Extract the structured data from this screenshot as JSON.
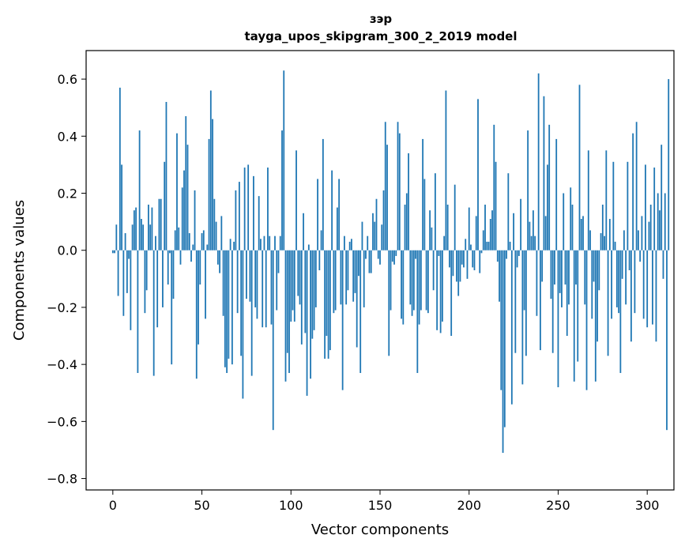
{
  "chart_data": {
    "type": "bar",
    "title": "зэр",
    "subtitle": "tayga_upos_skipgram_300_2_2019 model",
    "xlabel": "Vector components",
    "ylabel": "Components values",
    "xlim": [
      -15,
      315
    ],
    "ylim": [
      -0.84,
      0.7
    ],
    "xticks": [
      0,
      50,
      100,
      150,
      200,
      250,
      300
    ],
    "yticks": [
      -0.8,
      -0.6,
      -0.4,
      -0.2,
      0.0,
      0.2,
      0.4,
      0.6
    ],
    "ytick_labels": [
      "−0.8",
      "−0.6",
      "−0.4",
      "−0.2",
      "0.0",
      "0.2",
      "0.4",
      "0.6"
    ],
    "grid": false,
    "bar_color": "#1f77b4",
    "values": [
      -0.01,
      -0.01,
      0.09,
      -0.16,
      0.57,
      0.3,
      -0.23,
      0.06,
      -0.15,
      -0.03,
      -0.28,
      0.09,
      0.14,
      0.15,
      -0.43,
      0.42,
      0.11,
      0.09,
      -0.22,
      -0.14,
      0.16,
      0.09,
      0.15,
      -0.44,
      0.05,
      -0.27,
      0.18,
      0.18,
      -0.2,
      0.31,
      0.52,
      -0.12,
      -0.01,
      -0.4,
      -0.17,
      0.07,
      0.41,
      0.08,
      -0.05,
      0.22,
      0.28,
      0.47,
      0.37,
      0.06,
      -0.04,
      0.02,
      0.21,
      -0.45,
      -0.33,
      -0.12,
      0.06,
      0.07,
      -0.24,
      0.02,
      0.39,
      0.56,
      0.46,
      0.18,
      0.1,
      -0.05,
      -0.08,
      0.12,
      -0.23,
      -0.41,
      -0.43,
      -0.38,
      0.04,
      -0.4,
      0.03,
      0.21,
      -0.22,
      0.24,
      -0.37,
      -0.52,
      0.29,
      -0.17,
      0.3,
      -0.18,
      -0.44,
      0.26,
      -0.2,
      -0.24,
      0.19,
      0.04,
      -0.27,
      0.05,
      -0.27,
      0.29,
      0.05,
      -0.26,
      -0.63,
      0.05,
      -0.21,
      -0.08,
      0.05,
      0.42,
      0.63,
      -0.46,
      -0.36,
      -0.43,
      -0.25,
      -0.21,
      -0.25,
      0.35,
      -0.16,
      -0.19,
      -0.33,
      0.13,
      -0.29,
      -0.51,
      0.02,
      -0.45,
      -0.31,
      -0.28,
      -0.2,
      0.25,
      -0.07,
      0.07,
      0.39,
      -0.38,
      -0.3,
      -0.38,
      -0.35,
      0.28,
      -0.22,
      -0.21,
      0.15,
      0.25,
      -0.19,
      -0.49,
      0.05,
      -0.19,
      -0.14,
      0.03,
      0.04,
      -0.18,
      -0.15,
      -0.34,
      -0.09,
      -0.43,
      0.1,
      -0.2,
      -0.03,
      0.05,
      -0.08,
      -0.08,
      0.13,
      0.1,
      0.18,
      -0.03,
      -0.05,
      0.09,
      0.21,
      0.45,
      0.37,
      -0.37,
      -0.21,
      -0.04,
      -0.05,
      -0.02,
      0.45,
      0.41,
      -0.24,
      -0.26,
      0.16,
      0.2,
      0.34,
      -0.19,
      -0.23,
      -0.21,
      -0.03,
      -0.43,
      -0.26,
      -0.21,
      0.39,
      0.25,
      -0.21,
      -0.22,
      0.14,
      0.08,
      -0.14,
      0.27,
      -0.28,
      -0.02,
      -0.29,
      -0.25,
      0.05,
      0.56,
      0.16,
      -0.06,
      -0.3,
      -0.09,
      0.23,
      -0.11,
      -0.16,
      -0.11,
      -0.05,
      -0.06,
      0.04,
      -0.1,
      0.15,
      0.02,
      -0.06,
      -0.07,
      0.12,
      0.53,
      -0.08,
      -0.01,
      0.07,
      0.16,
      0.03,
      0.03,
      0.11,
      0.14,
      0.44,
      0.31,
      -0.04,
      -0.18,
      -0.49,
      -0.71,
      -0.62,
      -0.03,
      0.27,
      0.03,
      -0.54,
      0.13,
      -0.36,
      -0.06,
      -0.02,
      0.18,
      -0.47,
      -0.21,
      -0.37,
      0.42,
      0.1,
      0.05,
      0.14,
      0.05,
      -0.23,
      0.62,
      -0.35,
      -0.11,
      0.54,
      0.12,
      0.3,
      0.44,
      -0.17,
      -0.36,
      -0.12,
      0.39,
      -0.48,
      -0.15,
      -0.2,
      0.2,
      -0.12,
      -0.3,
      -0.19,
      0.22,
      0.16,
      -0.46,
      -0.12,
      -0.39,
      0.58,
      0.11,
      0.12,
      -0.19,
      -0.49,
      0.35,
      0.07,
      -0.24,
      -0.11,
      -0.46,
      -0.32,
      -0.14,
      0.06,
      0.16,
      0.05,
      0.35,
      -0.37,
      0.11,
      -0.24,
      0.31,
      0.03,
      -0.2,
      -0.22,
      -0.43,
      -0.1,
      0.07,
      -0.19,
      0.31,
      -0.07,
      -0.32,
      0.41,
      -0.22,
      0.45,
      0.07,
      -0.04,
      0.12,
      -0.24,
      0.3,
      -0.27,
      0.1,
      0.16,
      -0.26,
      0.29,
      -0.32,
      0.2,
      0.14,
      0.37,
      -0.1,
      0.2,
      -0.63,
      0.6
    ]
  }
}
